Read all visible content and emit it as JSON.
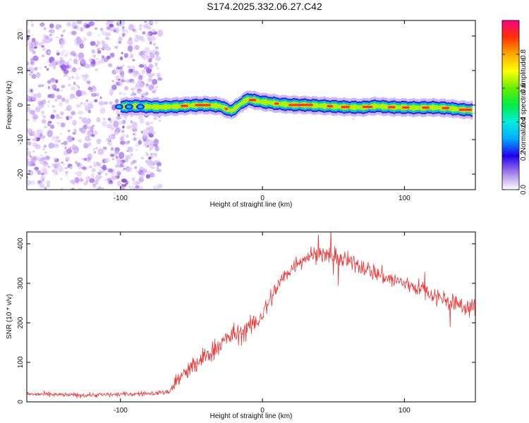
{
  "title": "S174.2025.332.06.27.C42",
  "chart_data": [
    {
      "type": "heatmap",
      "name": "spectrogram",
      "xlabel": "Height of straight line (km)",
      "ylabel": "Frequency (Hz)",
      "xlim": [
        -166,
        150
      ],
      "ylim": [
        -24.5,
        24.5
      ],
      "xticks": [
        -100,
        0,
        100
      ],
      "yticks": [
        -20,
        -10,
        0,
        10,
        20
      ],
      "noise_region": [
        -166,
        -72
      ],
      "doppler_trace": {
        "x": [
          -100,
          -90,
          -72,
          -60,
          -50,
          -40,
          -30,
          -25,
          -22,
          -18,
          -14,
          -10,
          -5,
          0,
          5,
          10,
          20,
          30,
          40,
          50,
          60,
          70,
          80,
          90,
          100,
          110,
          120,
          130,
          140,
          148
        ],
        "freq": [
          -0.5,
          -0.3,
          -0.6,
          -0.4,
          -0.1,
          0.0,
          -0.3,
          -1.2,
          -1.7,
          -0.6,
          0.8,
          1.7,
          1.3,
          0.9,
          0.7,
          0.4,
          0.1,
          0.0,
          -0.2,
          -0.4,
          -0.6,
          -0.7,
          -0.3,
          -0.6,
          -0.7,
          -0.8,
          -0.7,
          -0.9,
          -1.3,
          -1.5
        ]
      },
      "colorbar": {
        "label": "Normalized spectral amplitude",
        "range": [
          0.0,
          1.0
        ],
        "ticks": [
          0.0,
          0.2,
          0.4,
          0.6,
          0.8
        ],
        "tick_labels": [
          "0.0",
          "0.2",
          "0.4",
          "0.6",
          "0.8"
        ]
      }
    },
    {
      "type": "line",
      "name": "snr",
      "xlabel": "Height of straight line (km)",
      "ylabel": "SNR (10 * v/v)",
      "xlim": [
        -166,
        150
      ],
      "ylim": [
        0,
        430
      ],
      "xticks": [
        -100,
        0,
        100
      ],
      "yticks": [
        0,
        100,
        200,
        300,
        400
      ],
      "color": "#ee3333",
      "series": [
        {
          "name": "SNR",
          "x": [
            -166,
            -150,
            -130,
            -110,
            -90,
            -75,
            -66,
            -60,
            -55,
            -50,
            -45,
            -40,
            -35,
            -30,
            -25,
            -20,
            -15,
            -10,
            -5,
            0,
            5,
            10,
            15,
            20,
            25,
            30,
            35,
            40,
            45,
            50,
            55,
            60,
            65,
            70,
            75,
            80,
            85,
            90,
            95,
            100,
            105,
            110,
            115,
            120,
            125,
            130,
            135,
            140,
            145,
            150
          ],
          "y": [
            20,
            18,
            17,
            18,
            20,
            22,
            25,
            55,
            70,
            85,
            100,
            115,
            130,
            145,
            160,
            170,
            175,
            185,
            200,
            220,
            255,
            290,
            315,
            335,
            355,
            365,
            372,
            375,
            372,
            365,
            360,
            355,
            350,
            343,
            335,
            325,
            318,
            310,
            305,
            300,
            295,
            288,
            280,
            272,
            265,
            258,
            250,
            244,
            240,
            238
          ]
        }
      ]
    }
  ]
}
